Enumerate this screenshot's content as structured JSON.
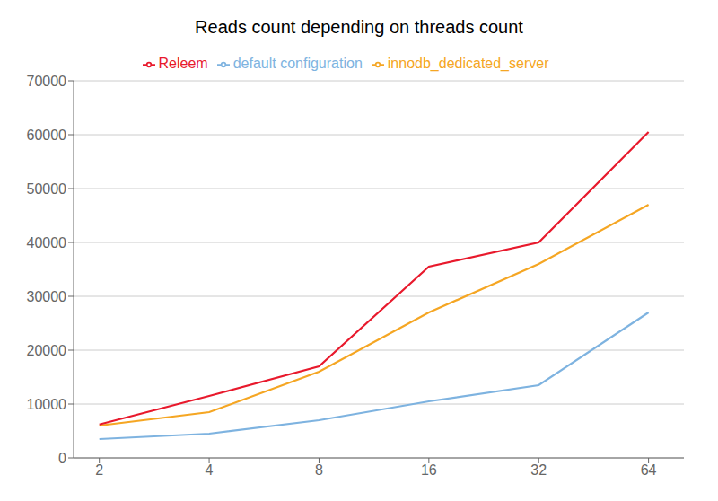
{
  "chart_data": {
    "type": "line",
    "title": "Reads count depending on threads count",
    "x": [
      2,
      4,
      8,
      16,
      32,
      64
    ],
    "xlim": [
      1.7,
      80
    ],
    "xticks": [
      2,
      4,
      8,
      16,
      32,
      64
    ],
    "log": "x",
    "ylim": [
      0,
      70000
    ],
    "yticks": [
      0,
      10000,
      20000,
      30000,
      40000,
      50000,
      60000,
      70000
    ],
    "grid": true,
    "legend": "top",
    "series": [
      {
        "name": "default configuration",
        "color": "#7eb3e0",
        "values": [
          3500,
          4500,
          7000,
          10500,
          13500,
          27000
        ]
      },
      {
        "name": "innodb_dedicated_server",
        "color": "#f5a623",
        "values": [
          6000,
          8500,
          16000,
          27000,
          36000,
          47000
        ]
      },
      {
        "name": "Releem",
        "color": "#e8192c",
        "values": [
          6200,
          11500,
          17000,
          35500,
          40000,
          60500
        ]
      }
    ]
  }
}
